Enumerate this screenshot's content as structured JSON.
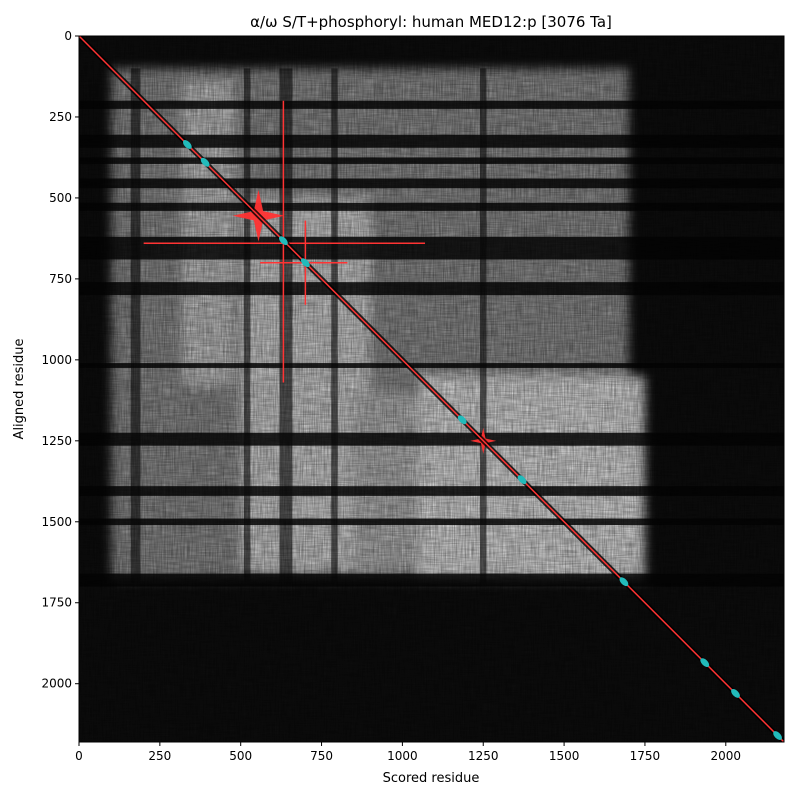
{
  "chart_data": {
    "type": "heatmap",
    "title": "α/ω S/T+phosphoryl: human MED12:p [3076 Ta]",
    "xlabel": "Scored residue",
    "ylabel": "Aligned residue",
    "xlim": [
      0,
      2180
    ],
    "ylim": [
      2180,
      0
    ],
    "xticks": [
      0,
      250,
      500,
      750,
      1000,
      1250,
      1500,
      1750,
      2000
    ],
    "yticks": [
      0,
      250,
      500,
      750,
      1000,
      1250,
      1500,
      1750,
      2000
    ],
    "colormap": "grayscale",
    "diagonal_color": "#ff3333",
    "marker_color": "#22bbbb",
    "grid": false,
    "bright_blocks": [
      {
        "x": [
          100,
          1700
        ],
        "y": [
          100,
          1680
        ],
        "level": 0.55
      },
      {
        "x": [
          320,
          480
        ],
        "y": [
          140,
          1080
        ],
        "level": 0.75
      },
      {
        "x": [
          500,
          900
        ],
        "y": [
          500,
          1650
        ],
        "level": 0.8
      },
      {
        "x": [
          850,
          1500
        ],
        "y": [
          1100,
          1650
        ],
        "level": 0.7
      },
      {
        "x": [
          1050,
          1750
        ],
        "y": [
          1050,
          1680
        ],
        "level": 0.85
      }
    ],
    "dark_bands_y": [
      {
        "y": [
          200,
          225
        ]
      },
      {
        "y": [
          305,
          345
        ]
      },
      {
        "y": [
          375,
          395
        ]
      },
      {
        "y": [
          440,
          470
        ]
      },
      {
        "y": [
          515,
          540
        ]
      },
      {
        "y": [
          620,
          690
        ]
      },
      {
        "y": [
          760,
          800
        ]
      },
      {
        "y": [
          1010,
          1025
        ]
      },
      {
        "y": [
          1225,
          1265
        ]
      },
      {
        "y": [
          1390,
          1420
        ]
      },
      {
        "y": [
          1490,
          1510
        ]
      },
      {
        "y": [
          1660,
          1700
        ]
      }
    ],
    "dark_bands_x": [
      {
        "x": [
          160,
          190
        ]
      },
      {
        "x": [
          510,
          530
        ]
      },
      {
        "x": [
          620,
          660
        ]
      },
      {
        "x": [
          780,
          800
        ]
      },
      {
        "x": [
          1240,
          1260
        ]
      }
    ],
    "crosses": [
      {
        "x": 632,
        "y": 640,
        "x_range": [
          200,
          1070
        ],
        "y_range": [
          200,
          1070
        ],
        "style": "line"
      },
      {
        "x": 700,
        "y": 700,
        "x_range": [
          560,
          830
        ],
        "y_range": [
          570,
          830
        ],
        "style": "line"
      },
      {
        "x": 555,
        "y": 555,
        "size": 80,
        "style": "star"
      },
      {
        "x": 1250,
        "y": 1250,
        "size": 40,
        "style": "star"
      }
    ],
    "markers": [
      {
        "x": 335,
        "y": 335
      },
      {
        "x": 390,
        "y": 390
      },
      {
        "x": 632,
        "y": 632
      },
      {
        "x": 700,
        "y": 700
      },
      {
        "x": 1185,
        "y": 1185
      },
      {
        "x": 1370,
        "y": 1370
      },
      {
        "x": 1685,
        "y": 1685
      },
      {
        "x": 1935,
        "y": 1935
      },
      {
        "x": 2030,
        "y": 2030
      },
      {
        "x": 2160,
        "y": 2160
      }
    ]
  }
}
